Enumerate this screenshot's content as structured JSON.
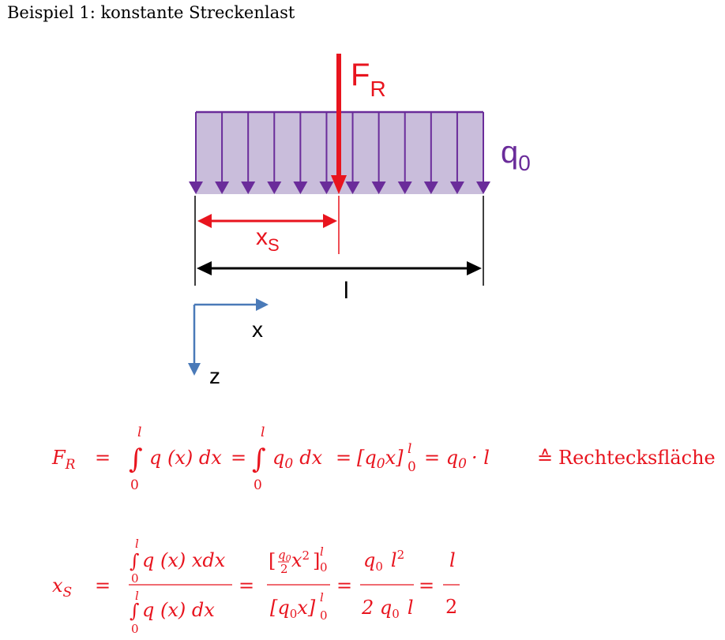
{
  "title": "Beispiel 1: konstante Streckenlast",
  "diagram": {
    "labels": {
      "resultant": "F",
      "resultant_sub": "R",
      "load": "q",
      "load_sub": "0",
      "centroid": "x",
      "centroid_sub": "S",
      "length": "l",
      "axis_x": "x",
      "axis_z": "z"
    },
    "colors": {
      "load_fill": "#c9bddb",
      "load_stroke": "#6a2c9a",
      "resultant": "#e8141e",
      "axes": "#4a7ab8",
      "dimension": "#000000"
    },
    "load_arrow_count": 12
  },
  "equations": {
    "eq1": {
      "lhs": "F",
      "lhs_sub": "R",
      "equals": "=",
      "int_upper": "l",
      "int_lower": "0",
      "integrand1": "q (x) dx",
      "integrand2": "q",
      "integrand2_sub": "0",
      "integrand2_rest": "dx",
      "bracket": "[q",
      "bracket_sub": "0",
      "bracket_rest": "x]",
      "result": "= q",
      "result_sub": "0",
      "result_rest": "· l",
      "note_symbol": "≙",
      "note": "Rechtecksfläche"
    },
    "eq2": {
      "lhs": "x",
      "lhs_sub": "S",
      "num1": "q (x) xdx",
      "den1": "q (x) dx",
      "num2_rest": "x",
      "num2_exp": "2",
      "frac_q": "q",
      "frac_q_sub": "0",
      "frac_2": "2",
      "den2": "[q",
      "den2_rest": "x]",
      "num3": "q",
      "num3_rest": "l",
      "num3_exp": "2",
      "den3": "2 q",
      "den3_rest": "l",
      "num4": "l",
      "den4": "2"
    }
  }
}
